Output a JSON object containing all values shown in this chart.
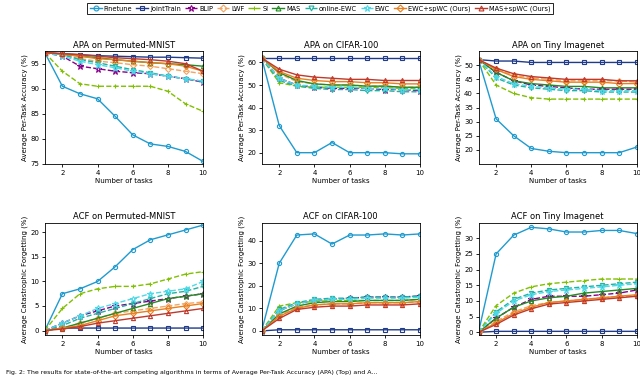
{
  "legend_labels": [
    "Finetune",
    "JointTrain",
    "BLIP",
    "LWF",
    "SI",
    "MAS",
    "online-EWC",
    "EWC",
    "EWC+spWC (Ours)",
    "MAS+spWC (Ours)"
  ],
  "tasks_x": [
    1,
    2,
    3,
    4,
    5,
    6,
    7,
    8,
    9,
    10
  ],
  "apa_pmnist": {
    "title": "APA on Permuted-MNIST",
    "ylabel": "Average Per-Task Accuracy (%)",
    "ylim": [
      75,
      97.5
    ],
    "yticks": [
      75,
      80,
      85,
      90,
      95
    ],
    "data": {
      "Finetune": [
        97.2,
        90.5,
        89.0,
        88.0,
        84.5,
        80.8,
        79.0,
        78.5,
        77.5,
        75.5
      ],
      "JointTrain": [
        97.2,
        97.0,
        96.8,
        96.6,
        96.5,
        96.4,
        96.3,
        96.3,
        96.2,
        96.1
      ],
      "BLIP": [
        97.2,
        96.5,
        94.5,
        94.0,
        93.5,
        93.2,
        93.0,
        92.5,
        92.0,
        91.3
      ],
      "LWF": [
        97.2,
        96.8,
        96.0,
        95.5,
        95.2,
        94.8,
        94.5,
        94.0,
        93.5,
        93.0
      ],
      "SI": [
        97.2,
        93.5,
        91.0,
        90.5,
        90.5,
        90.5,
        90.5,
        89.5,
        87.0,
        85.5
      ],
      "MAS": [
        97.2,
        96.9,
        96.5,
        96.2,
        95.8,
        95.5,
        95.2,
        95.0,
        94.8,
        94.5
      ],
      "online-EWC": [
        97.2,
        96.8,
        95.8,
        95.2,
        94.5,
        93.8,
        93.2,
        92.5,
        92.0,
        91.5
      ],
      "EWC": [
        97.2,
        96.5,
        95.5,
        94.8,
        94.2,
        93.5,
        93.0,
        92.5,
        92.0,
        91.5
      ],
      "EWC+spWC (Ours)": [
        97.2,
        96.9,
        96.5,
        96.0,
        95.8,
        95.5,
        95.2,
        95.0,
        94.5,
        93.5
      ],
      "MAS+spWC (Ours)": [
        97.2,
        97.0,
        96.8,
        96.5,
        96.2,
        96.0,
        95.8,
        95.5,
        95.0,
        93.5
      ]
    }
  },
  "apa_cifar": {
    "title": "APA on CIFAR-100",
    "ylabel": "Average Per-Task Accuracy (%)",
    "ylim": [
      15,
      65
    ],
    "yticks": [
      20,
      30,
      40,
      50,
      60
    ],
    "data": {
      "Finetune": [
        62.0,
        32.0,
        20.0,
        20.0,
        24.5,
        20.0,
        20.0,
        20.0,
        19.5,
        19.5
      ],
      "JointTrain": [
        62.0,
        62.0,
        62.0,
        62.0,
        62.0,
        62.0,
        62.0,
        62.0,
        62.0,
        62.0
      ],
      "BLIP": [
        62.0,
        53.0,
        50.0,
        49.0,
        48.5,
        48.5,
        48.5,
        48.0,
        48.0,
        47.5
      ],
      "LWF": [
        62.0,
        55.0,
        51.5,
        50.5,
        50.0,
        50.0,
        49.5,
        49.5,
        49.0,
        49.0
      ],
      "SI": [
        62.0,
        51.0,
        49.5,
        49.0,
        49.0,
        49.0,
        49.0,
        48.8,
        48.5,
        48.5
      ],
      "MAS": [
        62.0,
        55.5,
        52.0,
        50.5,
        50.0,
        50.0,
        49.5,
        49.5,
        49.0,
        49.0
      ],
      "online-EWC": [
        62.0,
        52.0,
        49.5,
        48.5,
        48.0,
        48.0,
        47.5,
        47.5,
        47.0,
        47.0
      ],
      "EWC": [
        62.0,
        53.0,
        50.0,
        49.5,
        49.0,
        49.0,
        48.5,
        48.5,
        48.0,
        48.0
      ],
      "EWC+spWC (Ours)": [
        62.0,
        56.0,
        53.0,
        52.0,
        51.5,
        51.5,
        51.0,
        51.0,
        50.5,
        50.5
      ],
      "MAS+spWC (Ours)": [
        62.0,
        57.0,
        54.5,
        53.5,
        53.0,
        52.5,
        52.5,
        52.0,
        52.0,
        52.0
      ]
    }
  },
  "apa_tiny": {
    "title": "APA on Tiny Imagenet",
    "ylabel": "Average Per-Task Accuracy (%)",
    "ylim": [
      15,
      55
    ],
    "yticks": [
      20,
      25,
      30,
      35,
      40,
      45,
      50
    ],
    "data": {
      "Finetune": [
        52.0,
        31.0,
        25.0,
        20.5,
        19.5,
        19.0,
        19.0,
        19.0,
        19.0,
        21.0
      ],
      "JointTrain": [
        52.0,
        51.5,
        51.5,
        51.0,
        51.0,
        51.0,
        51.0,
        51.0,
        51.0,
        51.0
      ],
      "BLIP": [
        52.0,
        47.5,
        44.5,
        43.0,
        42.5,
        42.0,
        41.5,
        41.5,
        41.5,
        41.5
      ],
      "LWF": [
        52.0,
        48.5,
        46.5,
        45.5,
        45.0,
        44.5,
        44.5,
        44.5,
        44.5,
        44.0
      ],
      "SI": [
        52.0,
        43.0,
        40.0,
        38.5,
        38.0,
        38.0,
        38.0,
        38.0,
        38.0,
        38.0
      ],
      "MAS": [
        52.0,
        47.5,
        44.5,
        43.5,
        43.0,
        42.5,
        42.5,
        42.0,
        42.0,
        42.0
      ],
      "online-EWC": [
        52.0,
        45.5,
        43.0,
        42.0,
        41.5,
        41.0,
        41.0,
        40.5,
        40.5,
        40.5
      ],
      "EWC": [
        52.0,
        46.0,
        43.5,
        42.5,
        42.0,
        41.5,
        41.5,
        41.0,
        41.0,
        41.0
      ],
      "EWC+spWC (Ours)": [
        52.0,
        48.5,
        46.0,
        45.0,
        44.5,
        44.0,
        44.0,
        44.0,
        43.5,
        43.5
      ],
      "MAS+spWC (Ours)": [
        52.0,
        49.0,
        47.0,
        46.0,
        45.5,
        45.0,
        45.0,
        45.0,
        44.5,
        44.5
      ]
    }
  },
  "acf_pmnist": {
    "title": "ACF on Permuted-MNIST",
    "ylabel": "Average Catastrophic Forgetting (%)",
    "ylim": [
      -1,
      22
    ],
    "yticks": [
      0,
      5,
      10,
      15,
      20
    ],
    "data": {
      "Finetune": [
        0,
        7.5,
        8.5,
        10.0,
        13.0,
        16.5,
        18.5,
        19.5,
        20.5,
        21.5
      ],
      "JointTrain": [
        0,
        0.5,
        0.5,
        0.5,
        0.5,
        0.5,
        0.5,
        0.5,
        0.5,
        0.5
      ],
      "BLIP": [
        0,
        1.5,
        3.0,
        4.0,
        5.0,
        5.5,
        6.0,
        6.5,
        7.0,
        7.5
      ],
      "LWF": [
        0,
        0.5,
        1.5,
        2.5,
        3.5,
        4.0,
        4.5,
        5.0,
        5.5,
        5.8
      ],
      "SI": [
        0,
        4.5,
        7.5,
        8.5,
        9.0,
        9.0,
        9.5,
        10.5,
        11.5,
        12.0
      ],
      "MAS": [
        0,
        0.5,
        1.5,
        2.5,
        3.5,
        4.5,
        5.5,
        6.5,
        7.0,
        7.5
      ],
      "online-EWC": [
        0,
        1.0,
        2.5,
        3.5,
        4.5,
        5.5,
        6.5,
        7.5,
        8.0,
        9.0
      ],
      "EWC": [
        0,
        1.5,
        3.0,
        4.5,
        5.5,
        6.5,
        7.5,
        8.0,
        8.5,
        10.0
      ],
      "EWC+spWC (Ours)": [
        0,
        0.5,
        1.0,
        2.0,
        3.0,
        3.5,
        4.0,
        4.5,
        5.0,
        5.5
      ],
      "MAS+spWC (Ours)": [
        0,
        0.3,
        0.8,
        1.5,
        2.0,
        2.5,
        3.0,
        3.5,
        4.0,
        4.5
      ]
    }
  },
  "acf_cifar": {
    "title": "ACF on CIFAR-100",
    "ylabel": "Average Catastrophic Forgetting (%)",
    "ylim": [
      -2,
      48
    ],
    "yticks": [
      0,
      10,
      20,
      30,
      40
    ],
    "data": {
      "Finetune": [
        0,
        30.0,
        42.5,
        43.0,
        38.5,
        42.5,
        42.5,
        43.0,
        42.5,
        43.0
      ],
      "JointTrain": [
        0,
        0.5,
        0.5,
        0.5,
        0.5,
        0.5,
        0.5,
        0.5,
        0.5,
        0.5
      ],
      "BLIP": [
        0,
        9.0,
        12.0,
        13.5,
        14.0,
        14.5,
        15.0,
        15.0,
        15.0,
        15.5
      ],
      "LWF": [
        0,
        7.0,
        10.5,
        11.5,
        12.0,
        12.0,
        12.5,
        12.5,
        12.5,
        13.0
      ],
      "SI": [
        0,
        11.0,
        12.5,
        13.0,
        13.5,
        13.5,
        13.5,
        13.5,
        13.5,
        14.0
      ],
      "MAS": [
        0,
        7.5,
        11.0,
        12.5,
        13.0,
        13.0,
        13.5,
        13.5,
        13.5,
        14.0
      ],
      "online-EWC": [
        0,
        9.5,
        12.5,
        14.0,
        14.5,
        14.5,
        15.0,
        15.0,
        15.0,
        15.5
      ],
      "EWC": [
        0,
        9.0,
        12.0,
        13.5,
        14.0,
        14.0,
        14.5,
        14.5,
        14.5,
        15.0
      ],
      "EWC+spWC (Ours)": [
        0,
        6.5,
        10.0,
        11.5,
        12.0,
        12.0,
        12.5,
        12.5,
        12.5,
        13.0
      ],
      "MAS+spWC (Ours)": [
        0,
        5.5,
        9.5,
        10.5,
        11.0,
        11.0,
        11.5,
        11.5,
        11.5,
        12.0
      ]
    }
  },
  "acf_tiny": {
    "title": "ACF on Tiny Imagenet",
    "ylabel": "Average Catastrophic Forgetting (%)",
    "ylim": [
      -1,
      35
    ],
    "yticks": [
      0,
      5,
      10,
      15,
      20,
      25,
      30
    ],
    "data": {
      "Finetune": [
        0,
        25.0,
        31.0,
        33.5,
        33.0,
        32.0,
        32.0,
        32.5,
        32.5,
        31.5
      ],
      "JointTrain": [
        0,
        0.3,
        0.3,
        0.3,
        0.3,
        0.3,
        0.3,
        0.3,
        0.3,
        0.3
      ],
      "BLIP": [
        0,
        4.5,
        8.0,
        10.5,
        11.5,
        11.5,
        11.5,
        12.0,
        12.5,
        13.5
      ],
      "LWF": [
        0,
        3.5,
        6.5,
        8.5,
        9.5,
        10.0,
        10.5,
        11.0,
        11.5,
        11.5
      ],
      "SI": [
        0,
        8.5,
        12.5,
        14.5,
        15.5,
        16.0,
        16.5,
        17.0,
        17.0,
        17.0
      ],
      "MAS": [
        0,
        4.5,
        8.0,
        10.0,
        11.0,
        11.5,
        12.5,
        13.0,
        13.5,
        14.0
      ],
      "online-EWC": [
        0,
        6.5,
        10.5,
        12.5,
        13.5,
        14.0,
        14.5,
        15.0,
        15.5,
        16.0
      ],
      "EWC": [
        0,
        6.0,
        10.0,
        12.0,
        13.0,
        13.5,
        14.0,
        14.5,
        15.0,
        15.5
      ],
      "EWC+spWC (Ours)": [
        0,
        3.0,
        6.0,
        8.0,
        9.5,
        10.0,
        10.5,
        11.0,
        11.5,
        12.0
      ],
      "MAS+spWC (Ours)": [
        0,
        2.5,
        5.5,
        7.5,
        9.0,
        9.5,
        10.0,
        10.5,
        11.0,
        11.5
      ]
    }
  },
  "series_styles": {
    "Finetune": {
      "color": "#1f9bcf",
      "marker": "o",
      "linestyle": "-",
      "filled": false
    },
    "JointTrain": {
      "color": "#1f3b8a",
      "marker": "s",
      "linestyle": "-",
      "filled": false
    },
    "BLIP": {
      "color": "#8B008B",
      "marker": "*",
      "linestyle": "--",
      "filled": false
    },
    "LWF": {
      "color": "#f4a460",
      "marker": "D",
      "linestyle": "--",
      "filled": false
    },
    "SI": {
      "color": "#80c000",
      "marker": "+",
      "linestyle": "--",
      "filled": false
    },
    "MAS": {
      "color": "#228B22",
      "marker": "^",
      "linestyle": "-",
      "filled": false
    },
    "online-EWC": {
      "color": "#20b2a0",
      "marker": "v",
      "linestyle": "--",
      "filled": false
    },
    "EWC": {
      "color": "#4dd9e8",
      "marker": "*",
      "linestyle": "--",
      "filled": false
    },
    "EWC+spWC (Ours)": {
      "color": "#e88020",
      "marker": "D",
      "linestyle": "-",
      "filled": false
    },
    "MAS+spWC (Ours)": {
      "color": "#c0392b",
      "marker": "^",
      "linestyle": "-",
      "filled": false
    }
  },
  "caption": "Fig. 2: The results for state-of-the-art competing algorithms in terms of Average Per-Task Accuracy (APA) (Top) and A..."
}
